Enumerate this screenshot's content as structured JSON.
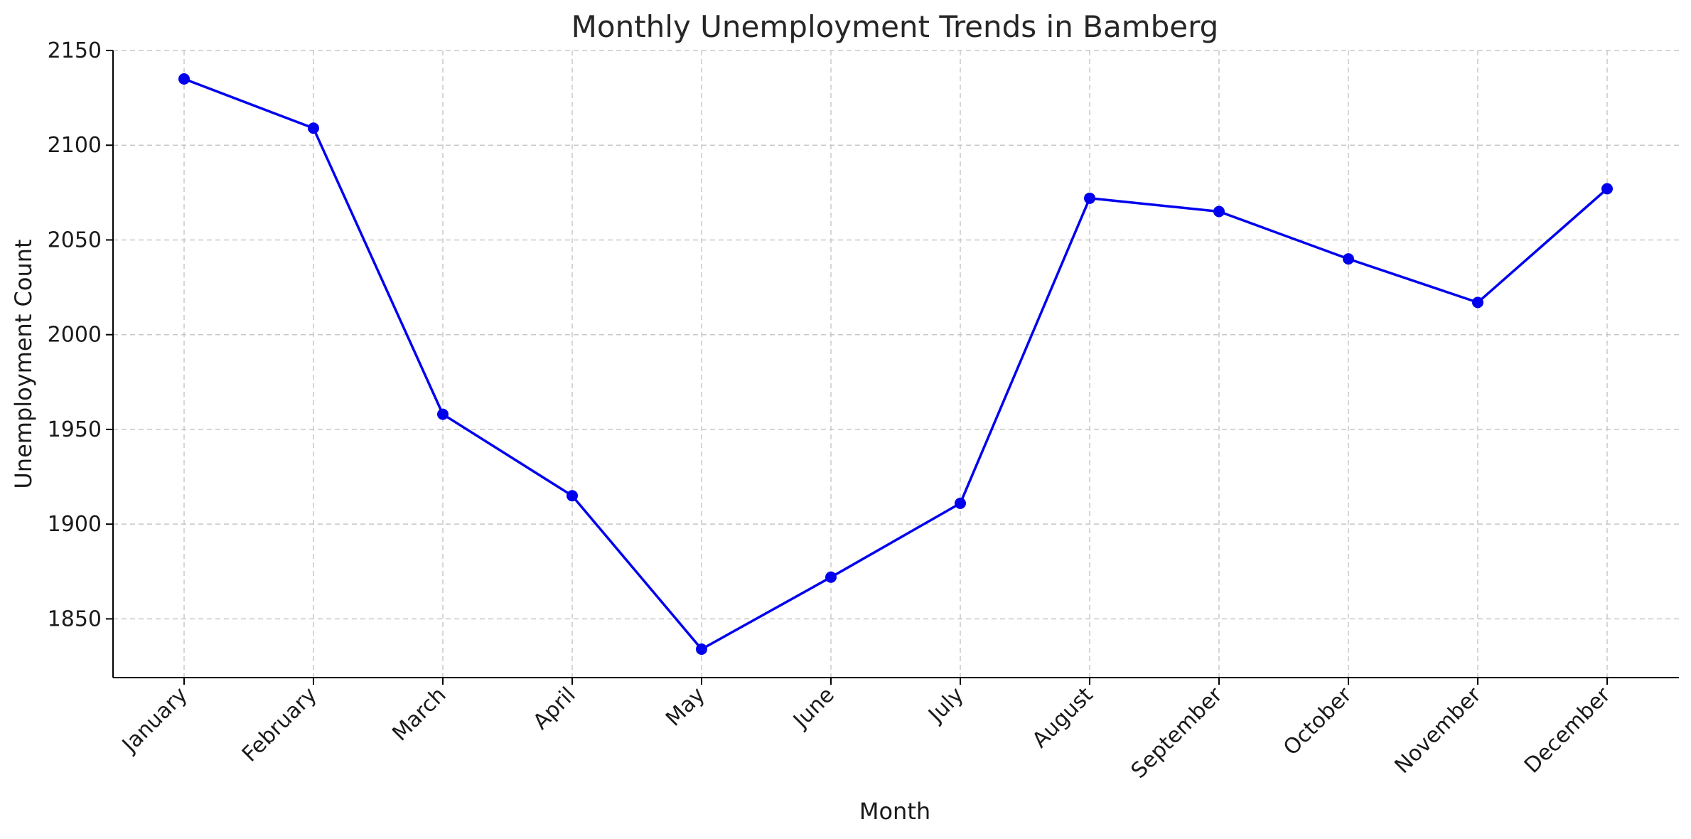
{
  "chart_data": {
    "type": "line",
    "title": "Monthly Unemployment Trends in Bamberg",
    "xlabel": "Month",
    "ylabel": "Unemployment Count",
    "categories": [
      "January",
      "February",
      "March",
      "April",
      "May",
      "June",
      "July",
      "August",
      "September",
      "October",
      "November",
      "December"
    ],
    "series": [
      {
        "values": [
          2135,
          2109,
          1958,
          1915,
          1834,
          1872,
          1911,
          2072,
          2065,
          2040,
          2017,
          2077
        ],
        "color": "#0000ee"
      }
    ],
    "ylim": [
      1819,
      2150
    ],
    "yticks": [
      1850,
      1900,
      1950,
      2000,
      2050,
      2100,
      2150
    ],
    "grid": true,
    "legend": "none",
    "marker": "circle"
  }
}
